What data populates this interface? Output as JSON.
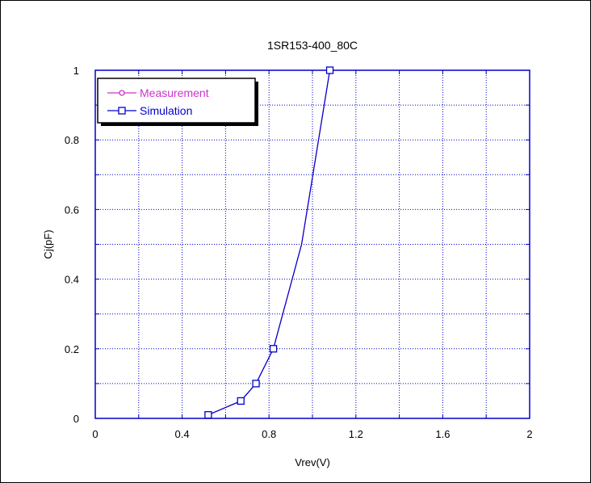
{
  "chart_data": {
    "type": "line",
    "title": "1SR153-400_80C",
    "xlabel": "Vrev(V)",
    "ylabel": "Cj(pF)",
    "xlim": [
      0,
      2
    ],
    "ylim": [
      0,
      1
    ],
    "x_ticks": [
      0,
      0.4,
      0.8,
      1.2,
      1.6,
      2
    ],
    "y_ticks": [
      0,
      0.2,
      0.4,
      0.6,
      0.8,
      1
    ],
    "x_tick_labels": [
      "0",
      "0.4",
      "0.8",
      "1.2",
      "1.6",
      "2"
    ],
    "y_tick_labels": [
      "0",
      "0.2",
      "0.4",
      "0.6",
      "0.8",
      "1"
    ],
    "grid": true,
    "legend_position": "top-left",
    "series": [
      {
        "name": "Measurement",
        "color": "#cc33cc",
        "marker": "circle",
        "x": [
          0.52,
          0.67,
          0.74,
          0.82,
          0.95,
          1.08
        ],
        "y": [
          0.01,
          0.05,
          0.1,
          0.2,
          0.5,
          1.0
        ]
      },
      {
        "name": "Simulation",
        "color": "#0000cc",
        "marker": "square",
        "x": [
          0.52,
          0.67,
          0.74,
          0.82,
          0.95,
          1.08
        ],
        "y": [
          0.01,
          0.05,
          0.1,
          0.2,
          0.5,
          1.0
        ],
        "marker_x": [
          0.52,
          0.67,
          0.74,
          0.82,
          1.08
        ],
        "marker_y": [
          0.01,
          0.05,
          0.1,
          0.2,
          1.0
        ]
      }
    ]
  }
}
